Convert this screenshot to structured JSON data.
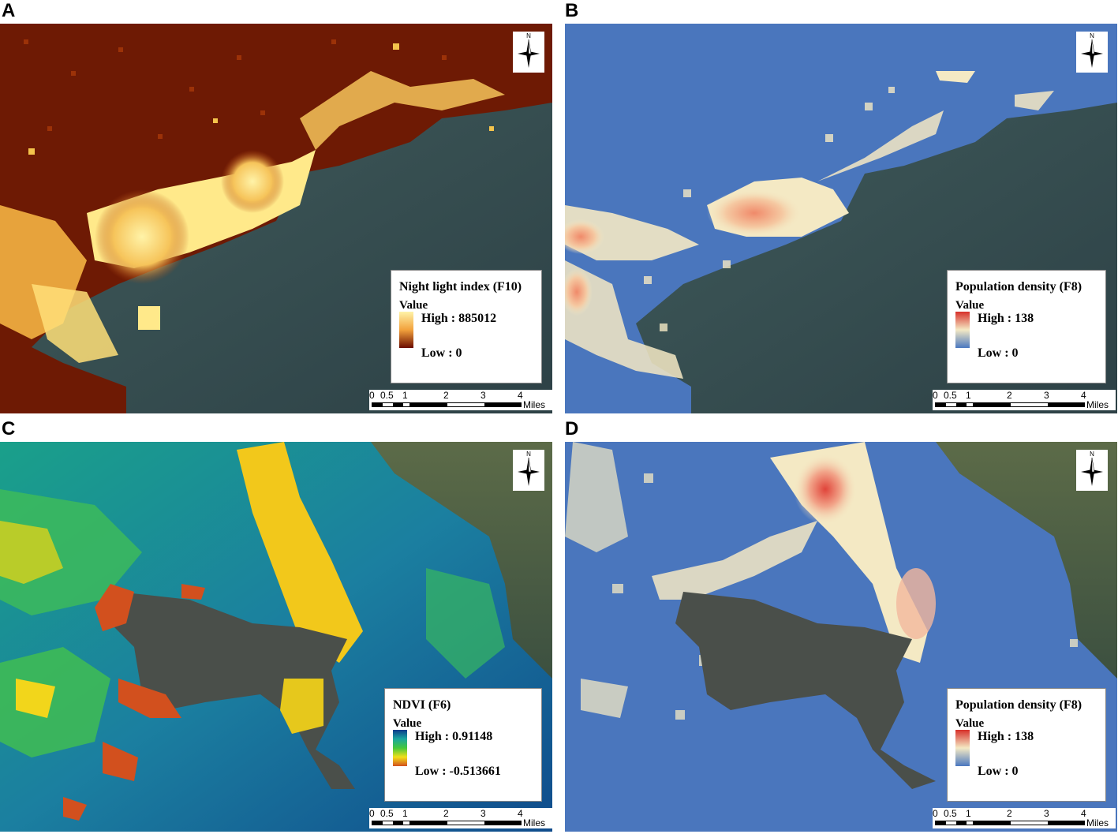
{
  "panels": [
    {
      "letter": "A",
      "legend": {
        "title": "Night light index (F10)",
        "value_label": "Value",
        "high": "High : 885012",
        "low": "Low : 0",
        "ramp": [
          "#fff3a8",
          "#f2a13c",
          "#6b0c00"
        ]
      },
      "north_label": "N",
      "scale": {
        "ticks": [
          "0",
          "0.5",
          "1",
          "2",
          "3",
          "4"
        ],
        "unit": "Miles"
      }
    },
    {
      "letter": "B",
      "legend": {
        "title": "Population density (F8)",
        "value_label": "Value",
        "high": "High : 138",
        "low": "Low : 0",
        "ramp": [
          "#d7302a",
          "#f4e9c4",
          "#4a78c0"
        ]
      },
      "north_label": "N",
      "scale": {
        "ticks": [
          "0",
          "0.5",
          "1",
          "2",
          "3",
          "4"
        ],
        "unit": "Miles"
      }
    },
    {
      "letter": "C",
      "legend": {
        "title": "NDVI (F6)",
        "value_label": "Value",
        "high": "High : 0.91148",
        "low": "Low : -0.513661",
        "ramp": [
          "#0b3a8c",
          "#1aa6a0",
          "#46c83c",
          "#f2e019",
          "#d2501e"
        ]
      },
      "north_label": "N",
      "scale": {
        "ticks": [
          "0",
          "0.5",
          "1",
          "2",
          "3",
          "4"
        ],
        "unit": "Miles"
      }
    },
    {
      "letter": "D",
      "legend": {
        "title": "Population density (F8)",
        "value_label": "Value",
        "high": "High : 138",
        "low": "Low : 0",
        "ramp": [
          "#d7302a",
          "#f4e9c4",
          "#4a78c0"
        ]
      },
      "north_label": "N",
      "scale": {
        "ticks": [
          "0",
          "0.5",
          "1",
          "2",
          "3",
          "4"
        ],
        "unit": "Miles"
      }
    }
  ]
}
